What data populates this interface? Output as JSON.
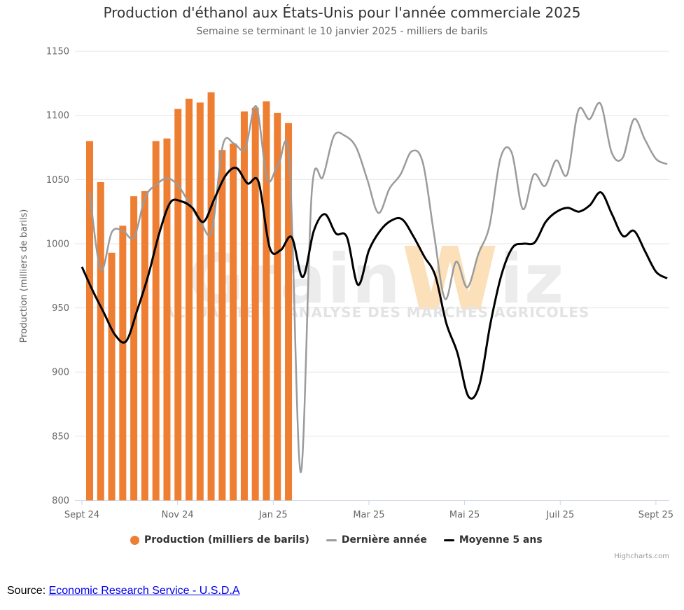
{
  "title": "Production d'éthanol aux États-Unis pour l'année commerciale 2025",
  "subtitle": "Semaine se terminant le 10 janvier 2025 - milliers de barils",
  "credits": "Highcharts.com",
  "source": {
    "prefix": "Source: ",
    "link": "Economic Research Service - U.S.D.A"
  },
  "watermark": {
    "brand_left": "Grain",
    "brand_orange": "W",
    "brand_right": "iz",
    "tagline": "ACTUALITÉ ET ANALYSE DES MARCHÉS AGRICOLES"
  },
  "legend": [
    {
      "label": "Production (milliers de barils)",
      "symbol": "circle",
      "color": "#EE7E32"
    },
    {
      "label": "Dernière année",
      "symbol": "line",
      "color": "#9B9B9B"
    },
    {
      "label": "Moyenne 5 ans",
      "symbol": "line",
      "color": "#000000"
    }
  ],
  "colors": {
    "bar": "#EE7E32",
    "last_year_line": "#9B9B9B",
    "avg5_line": "#000000",
    "grid": "#e6e6e6",
    "axis_line": "#ccd6eb",
    "axis_label": "#666666",
    "title": "#333333",
    "watermark_gray": "#ececec",
    "watermark_orange": "#fbe0ba",
    "watermark_tagline": "#e3e3e3"
  },
  "chart_data": {
    "type": "bar",
    "subtype": "column + 2 smoothed lines, weekly points",
    "title": "Production d'éthanol aux États-Unis pour l'année commerciale 2025",
    "subtitle": "Semaine se terminant le 10 janvier 2025 - milliers de barils",
    "xlabel": "",
    "ylabel": "Production (milliers de barils)",
    "ylim": [
      800,
      1150
    ],
    "grid": true,
    "legend_position": "bottom",
    "yaxis_ticks": [
      800,
      850,
      900,
      950,
      1000,
      1050,
      1100,
      1150
    ],
    "xaxis_ticks": [
      "Sept 24",
      "Nov 24",
      "Jan 25",
      "Mar 25",
      "Mai 25",
      "Juil 25",
      "Sept 25"
    ],
    "x_unit": "semaines (sept 2024 à sept 2025)",
    "series": [
      {
        "name": "Production (milliers de barils)",
        "type": "column",
        "color": "#EE7E32",
        "values": [
          1080,
          1048,
          993,
          1014,
          1037,
          1041,
          1080,
          1082,
          1105,
          1113,
          1110,
          1118,
          1073,
          1078,
          1103,
          1106,
          1111,
          1102,
          1094
        ]
      },
      {
        "name": "Dernière année",
        "type": "line",
        "color": "#9B9B9B",
        "values": [
          1040,
          980,
          1009,
          1010,
          1005,
          1036,
          1046,
          1051,
          1045,
          1031,
          1017,
          1010,
          1077,
          1078,
          1074,
          1107,
          1050,
          1062,
          1062,
          822,
          1040,
          1052,
          1084,
          1084,
          1075,
          1050,
          1024,
          1043,
          1054,
          1072,
          1063,
          1008,
          957,
          986,
          966,
          992,
          1014,
          1067,
          1071,
          1027,
          1054,
          1045,
          1065,
          1054,
          1104,
          1097,
          1109,
          1071,
          1067,
          1097,
          1081,
          1066,
          1062
        ]
      },
      {
        "name": "Moyenne 5 ans",
        "type": "line",
        "color": "#000000",
        "values": [
          982,
          963,
          946,
          929,
          924,
          948,
          975,
          1008,
          1032,
          1033,
          1028,
          1017,
          1035,
          1053,
          1059,
          1047,
          1048,
          997,
          995,
          1005,
          974,
          1010,
          1023,
          1008,
          1005,
          968,
          995,
          1010,
          1018,
          1019,
          1006,
          990,
          975,
          938,
          915,
          881,
          890,
          938,
          976,
          997,
          1000,
          1001,
          1017,
          1025,
          1028,
          1025,
          1030,
          1040,
          1023,
          1006,
          1010,
          994,
          978,
          973
        ]
      }
    ]
  }
}
